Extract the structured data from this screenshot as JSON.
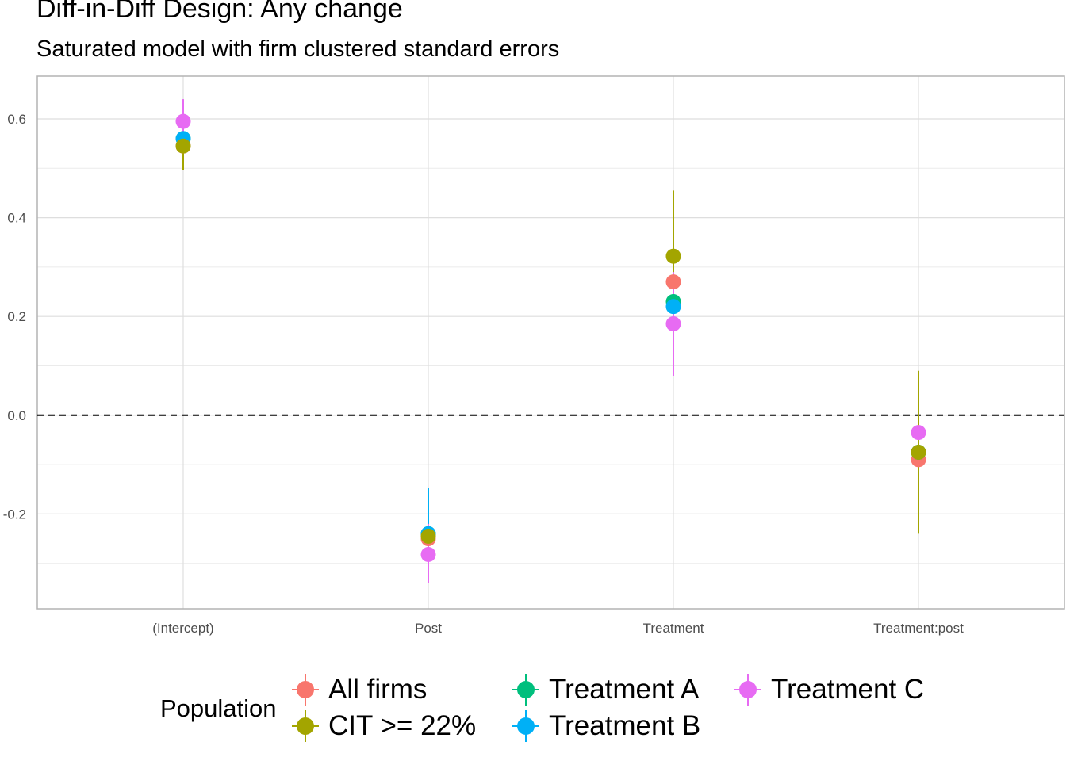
{
  "title": "Diff-in-Diff Design: Any change",
  "subtitle": "Saturated model with firm clustered standard errors",
  "chart_data": {
    "type": "scatter",
    "title": "Diff-in-Diff Design: Any change",
    "subtitle": "Saturated model with firm clustered standard errors",
    "categories": [
      "(Intercept)",
      "Post",
      "Treatment",
      "Treatment:post"
    ],
    "y_ticks": [
      -0.2,
      0.0,
      0.2,
      0.4,
      0.6
    ],
    "y_tick_labels": [
      "-0.2",
      "0.0",
      "0.2",
      "0.4",
      "0.6"
    ],
    "ylim": [
      -0.39,
      0.69
    ],
    "reference_line": 0,
    "grid": true,
    "legend_title": "Population",
    "legend_position": "bottom",
    "series": [
      {
        "name": "All firms",
        "color": "#F8766D",
        "values": [
          0.545,
          -0.25,
          0.27,
          -0.09
        ],
        "lower": [
          null,
          null,
          null,
          null
        ],
        "upper": [
          null,
          null,
          null,
          null
        ]
      },
      {
        "name": "CIT >= 22%",
        "color": "#A3A500",
        "values": [
          0.545,
          -0.245,
          0.322,
          -0.075
        ],
        "lower": [
          0.497,
          -0.305,
          0.188,
          -0.24
        ],
        "upper": [
          0.595,
          -0.185,
          0.455,
          0.09
        ]
      },
      {
        "name": "Treatment A",
        "color": "#00BF7D",
        "values": [
          0.56,
          -0.24,
          0.23,
          -0.075
        ],
        "lower": [
          null,
          null,
          null,
          null
        ],
        "upper": [
          null,
          null,
          null,
          null
        ]
      },
      {
        "name": "Treatment B",
        "color": "#00B0F6",
        "values": [
          0.56,
          -0.24,
          0.22,
          -0.08
        ],
        "lower": [
          null,
          -0.3,
          null,
          null
        ],
        "upper": [
          null,
          -0.148,
          null,
          null
        ]
      },
      {
        "name": "Treatment C",
        "color": "#E76BF3",
        "values": [
          0.595,
          -0.282,
          0.185,
          -0.035
        ],
        "lower": [
          0.548,
          -0.34,
          0.08,
          null
        ],
        "upper": [
          0.64,
          -0.22,
          0.29,
          null
        ]
      }
    ]
  }
}
